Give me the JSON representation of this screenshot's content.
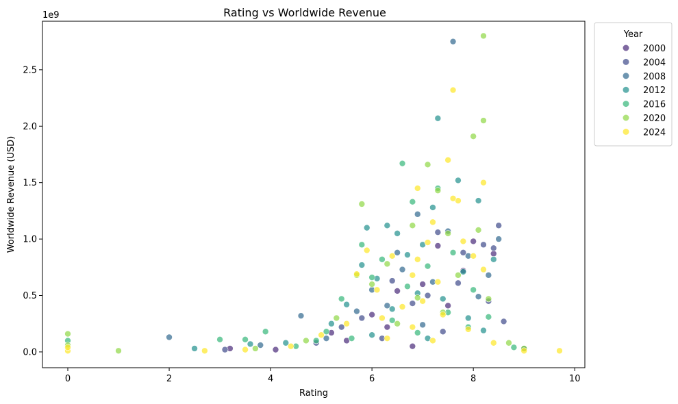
{
  "chart_data": {
    "type": "scatter",
    "title": "Rating vs Worldwide Revenue",
    "xlabel": "Rating",
    "ylabel": "Worldwide Revenue (USD)",
    "y_offset_label": "1e9",
    "xlim": [
      -0.5,
      10.2
    ],
    "ylim": [
      -0.14,
      2.93
    ],
    "y_unit_multiplier": 1000000000,
    "xticks": [
      0,
      2,
      4,
      6,
      8,
      10
    ],
    "xtick_labels": [
      "0",
      "2",
      "4",
      "6",
      "8",
      "10"
    ],
    "yticks": [
      0.0,
      0.5,
      1.0,
      1.5,
      2.0,
      2.5
    ],
    "ytick_labels": [
      "0.0",
      "0.5",
      "1.0",
      "1.5",
      "2.0",
      "2.5"
    ],
    "grid": false,
    "legend": {
      "title": "Year",
      "placement": "outside-top-right",
      "entries": [
        {
          "label": "2000",
          "color": "#482979"
        },
        {
          "label": "2004",
          "color": "#3f4a8a"
        },
        {
          "label": "2008",
          "color": "#31688e"
        },
        {
          "label": "2012",
          "color": "#21908d"
        },
        {
          "label": "2016",
          "color": "#35b779"
        },
        {
          "label": "2020",
          "color": "#8fd744"
        },
        {
          "label": "2024",
          "color": "#fde725"
        }
      ]
    },
    "series": [
      {
        "name": "2000",
        "color": "#482979",
        "points": [
          [
            5.2,
            0.17
          ],
          [
            5.5,
            0.1
          ],
          [
            6.0,
            0.33
          ],
          [
            6.3,
            0.22
          ],
          [
            6.5,
            0.54
          ],
          [
            7.0,
            0.6
          ],
          [
            7.3,
            0.94
          ],
          [
            7.8,
            0.72
          ],
          [
            8.0,
            0.98
          ],
          [
            8.4,
            0.87
          ],
          [
            3.2,
            0.03
          ],
          [
            4.1,
            0.02
          ],
          [
            6.8,
            0.05
          ],
          [
            7.5,
            0.41
          ]
        ]
      },
      {
        "name": "2004",
        "color": "#3f4a8a",
        "points": [
          [
            8.5,
            1.12
          ],
          [
            8.4,
            0.92
          ],
          [
            8.2,
            0.95
          ],
          [
            7.8,
            0.88
          ],
          [
            7.3,
            1.06
          ],
          [
            6.4,
            0.63
          ],
          [
            6.8,
            0.43
          ],
          [
            5.8,
            0.3
          ],
          [
            5.4,
            0.22
          ],
          [
            7.1,
            0.5
          ],
          [
            7.7,
            0.61
          ],
          [
            8.3,
            0.45
          ],
          [
            4.9,
            0.08
          ],
          [
            3.1,
            0.02
          ],
          [
            6.2,
            0.12
          ],
          [
            7.4,
            0.18
          ],
          [
            8.6,
            0.27
          ]
        ]
      },
      {
        "name": "2008",
        "color": "#31688e",
        "points": [
          [
            7.6,
            2.75
          ],
          [
            6.9,
            1.22
          ],
          [
            7.5,
            1.07
          ],
          [
            8.5,
            1.0
          ],
          [
            8.3,
            0.68
          ],
          [
            4.6,
            0.32
          ],
          [
            2.0,
            0.13
          ],
          [
            6.0,
            0.55
          ],
          [
            6.6,
            0.73
          ],
          [
            7.9,
            0.85
          ],
          [
            5.7,
            0.36
          ],
          [
            7.2,
            0.62
          ],
          [
            8.1,
            0.49
          ],
          [
            6.3,
            0.41
          ],
          [
            5.1,
            0.12
          ],
          [
            7.0,
            0.24
          ],
          [
            9.0,
            0.03
          ],
          [
            3.8,
            0.06
          ],
          [
            6.5,
            0.88
          ]
        ]
      },
      {
        "name": "2012",
        "color": "#21908d",
        "points": [
          [
            7.3,
            2.07
          ],
          [
            7.7,
            1.52
          ],
          [
            8.1,
            1.34
          ],
          [
            7.2,
            1.28
          ],
          [
            6.3,
            1.12
          ],
          [
            8.4,
            0.82
          ],
          [
            5.9,
            1.1
          ],
          [
            6.5,
            1.05
          ],
          [
            7.0,
            0.95
          ],
          [
            6.7,
            0.86
          ],
          [
            5.8,
            0.77
          ],
          [
            6.1,
            0.65
          ],
          [
            7.8,
            0.71
          ],
          [
            6.9,
            0.52
          ],
          [
            5.5,
            0.42
          ],
          [
            7.4,
            0.47
          ],
          [
            6.4,
            0.38
          ],
          [
            5.2,
            0.25
          ],
          [
            7.9,
            0.3
          ],
          [
            8.2,
            0.19
          ],
          [
            4.3,
            0.08
          ],
          [
            3.6,
            0.07
          ],
          [
            6.0,
            0.15
          ],
          [
            7.1,
            0.12
          ],
          [
            2.5,
            0.03
          ]
        ]
      },
      {
        "name": "2016",
        "color": "#35b779",
        "points": [
          [
            6.6,
            1.67
          ],
          [
            7.3,
            1.45
          ],
          [
            6.8,
            1.33
          ],
          [
            5.8,
            0.95
          ],
          [
            6.2,
            0.82
          ],
          [
            7.1,
            0.76
          ],
          [
            7.6,
            0.88
          ],
          [
            6.0,
            0.66
          ],
          [
            6.7,
            0.58
          ],
          [
            5.4,
            0.47
          ],
          [
            7.5,
            0.35
          ],
          [
            8.0,
            0.55
          ],
          [
            6.4,
            0.28
          ],
          [
            5.1,
            0.18
          ],
          [
            4.9,
            0.1
          ],
          [
            3.9,
            0.18
          ],
          [
            3.5,
            0.11
          ],
          [
            3.0,
            0.11
          ],
          [
            0.0,
            0.1
          ],
          [
            8.3,
            0.31
          ],
          [
            7.9,
            0.22
          ],
          [
            6.9,
            0.17
          ],
          [
            5.6,
            0.12
          ],
          [
            4.5,
            0.05
          ],
          [
            8.8,
            0.04
          ]
        ]
      },
      {
        "name": "2020",
        "color": "#8fd744",
        "points": [
          [
            8.2,
            2.8
          ],
          [
            8.2,
            2.05
          ],
          [
            8.0,
            1.91
          ],
          [
            7.1,
            1.66
          ],
          [
            7.3,
            1.43
          ],
          [
            5.8,
            1.31
          ],
          [
            6.8,
            1.12
          ],
          [
            7.5,
            1.05
          ],
          [
            8.1,
            1.08
          ],
          [
            6.3,
            0.78
          ],
          [
            7.7,
            0.68
          ],
          [
            6.0,
            0.6
          ],
          [
            5.7,
            0.68
          ],
          [
            6.9,
            0.48
          ],
          [
            8.3,
            0.47
          ],
          [
            5.3,
            0.3
          ],
          [
            7.4,
            0.35
          ],
          [
            6.5,
            0.25
          ],
          [
            4.7,
            0.1
          ],
          [
            1.0,
            0.01
          ],
          [
            0.0,
            0.16
          ],
          [
            0.0,
            0.06
          ],
          [
            9.0,
            0.03
          ],
          [
            8.7,
            0.08
          ],
          [
            3.7,
            0.03
          ]
        ]
      },
      {
        "name": "2024",
        "color": "#fde725",
        "points": [
          [
            7.6,
            2.32
          ],
          [
            7.5,
            1.7
          ],
          [
            8.2,
            1.5
          ],
          [
            6.9,
            1.45
          ],
          [
            7.7,
            1.34
          ],
          [
            7.6,
            1.36
          ],
          [
            7.2,
            1.15
          ],
          [
            7.8,
            0.98
          ],
          [
            7.1,
            0.97
          ],
          [
            5.9,
            0.9
          ],
          [
            6.4,
            0.85
          ],
          [
            8.0,
            0.85
          ],
          [
            6.9,
            0.82
          ],
          [
            8.2,
            0.73
          ],
          [
            6.8,
            0.68
          ],
          [
            7.3,
            0.62
          ],
          [
            5.7,
            0.69
          ],
          [
            6.1,
            0.55
          ],
          [
            7.0,
            0.45
          ],
          [
            6.6,
            0.4
          ],
          [
            7.4,
            0.33
          ],
          [
            6.2,
            0.3
          ],
          [
            5.5,
            0.25
          ],
          [
            6.8,
            0.22
          ],
          [
            7.9,
            0.2
          ],
          [
            5.0,
            0.15
          ],
          [
            6.3,
            0.12
          ],
          [
            7.2,
            0.1
          ],
          [
            8.4,
            0.08
          ],
          [
            4.4,
            0.05
          ],
          [
            9.7,
            0.01
          ],
          [
            9.0,
            0.01
          ],
          [
            2.7,
            0.01
          ],
          [
            0.0,
            0.01
          ],
          [
            0.0,
            0.04
          ],
          [
            3.5,
            0.02
          ]
        ]
      }
    ]
  }
}
